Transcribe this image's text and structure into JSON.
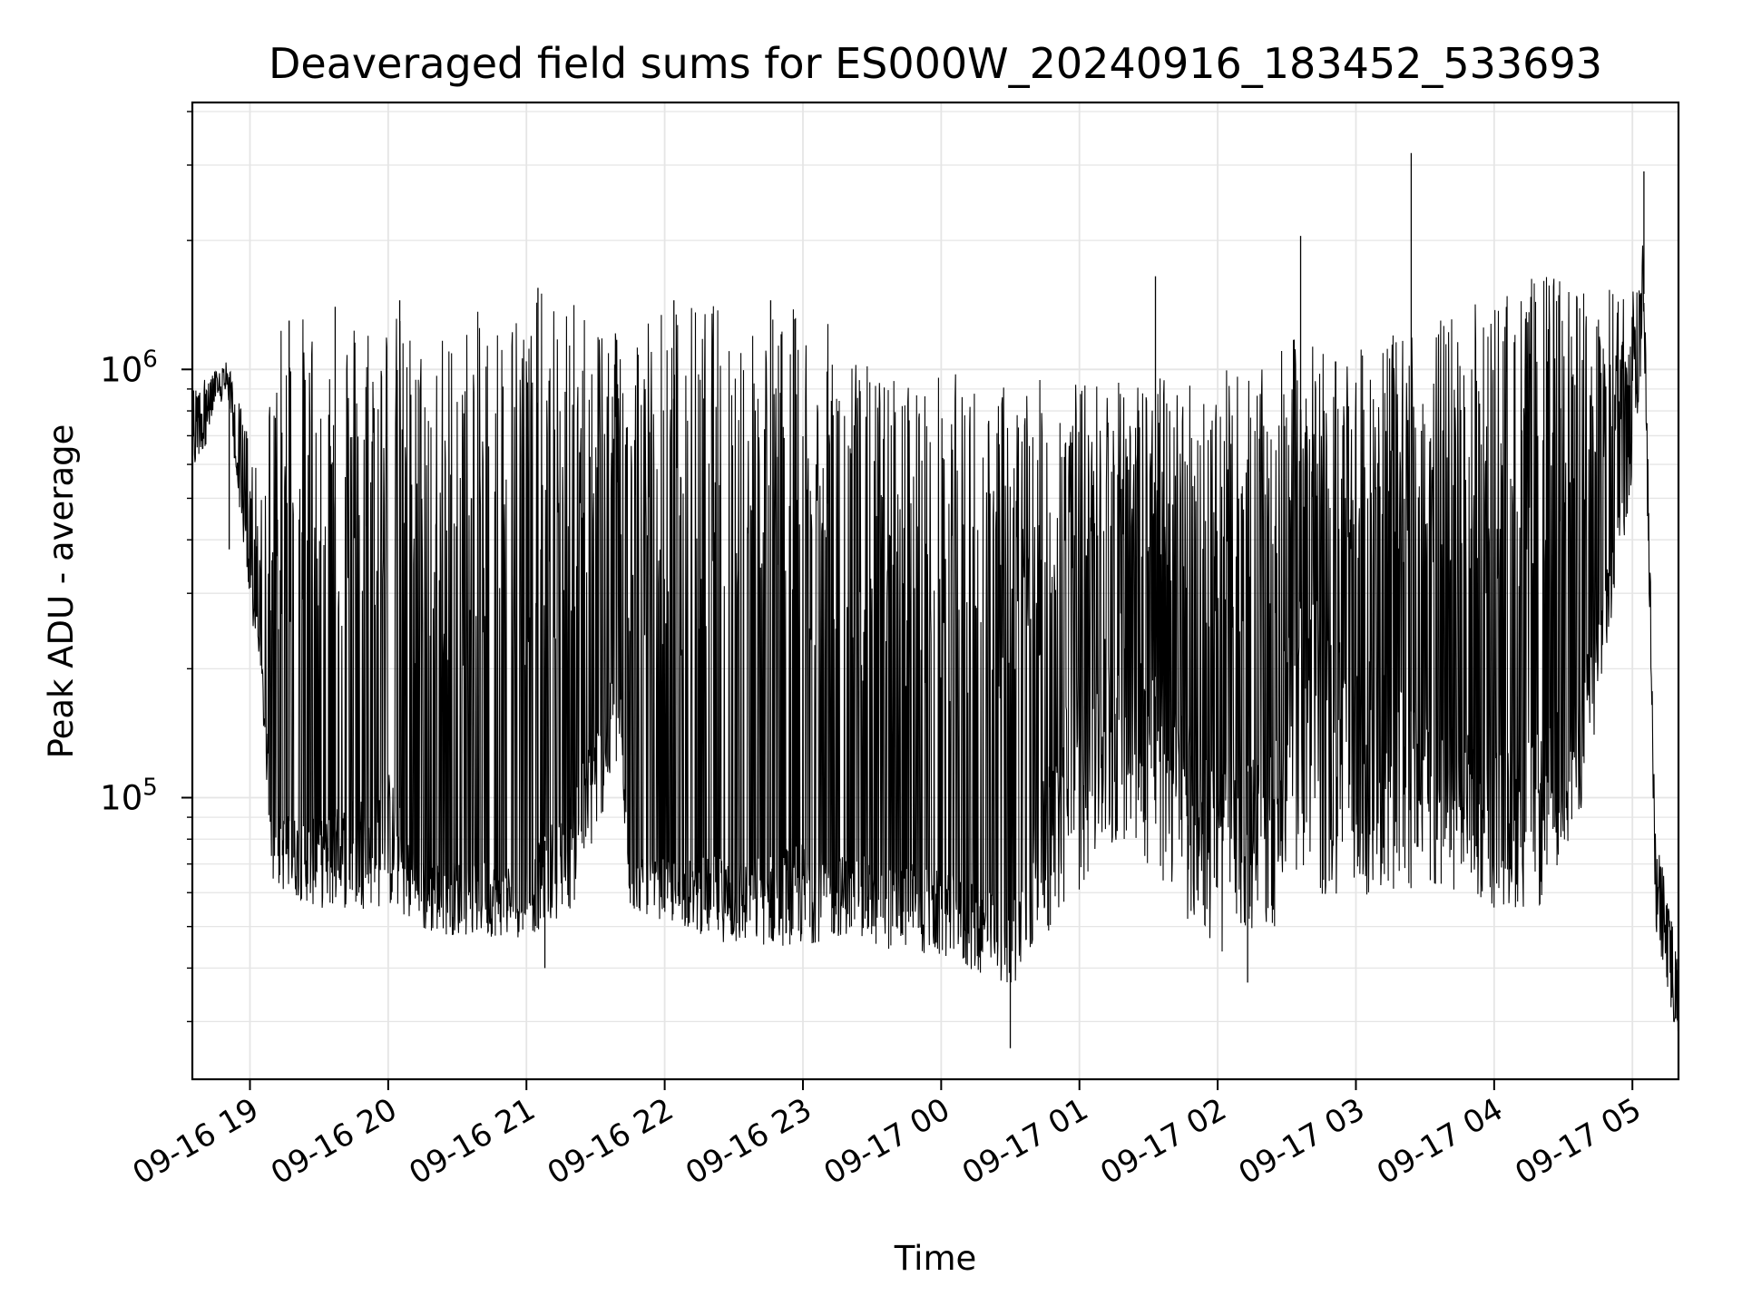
{
  "chart_data": {
    "type": "line",
    "title": "Deaveraged field sums for ES000W_20240916_183452_533693",
    "xlabel": "Time",
    "ylabel": "Peak ADU - average",
    "yscale": "log",
    "ylim": [
      22000,
      4200000
    ],
    "xlim": [
      "2024-09-16 18:35",
      "2024-09-17 05:20"
    ],
    "grid": true,
    "line_color": "#000000",
    "grid_color": "#e5e5e5",
    "x_ticks": [
      {
        "value": "2024-09-16 19:00",
        "label": "09-16 19"
      },
      {
        "value": "2024-09-16 20:00",
        "label": "09-16 20"
      },
      {
        "value": "2024-09-16 21:00",
        "label": "09-16 21"
      },
      {
        "value": "2024-09-16 22:00",
        "label": "09-16 22"
      },
      {
        "value": "2024-09-16 23:00",
        "label": "09-16 23"
      },
      {
        "value": "2024-09-17 00:00",
        "label": "09-17 00"
      },
      {
        "value": "2024-09-17 01:00",
        "label": "09-17 01"
      },
      {
        "value": "2024-09-17 02:00",
        "label": "09-17 02"
      },
      {
        "value": "2024-09-17 03:00",
        "label": "09-17 03"
      },
      {
        "value": "2024-09-17 04:00",
        "label": "09-17 04"
      },
      {
        "value": "2024-09-17 05:00",
        "label": "09-17 05"
      }
    ],
    "y_major_ticks": [
      {
        "value": 100000,
        "base": "10",
        "exp": "5"
      },
      {
        "value": 1000000,
        "base": "10",
        "exp": "6"
      }
    ],
    "envelope": [
      {
        "t": "2024-09-16 18:35",
        "low": 550000,
        "high": 900000,
        "base": 750000
      },
      {
        "t": "2024-09-16 18:50",
        "low": 900000,
        "high": 1050000,
        "base": 950000
      },
      {
        "t": "2024-09-16 19:00",
        "low": 280000,
        "high": 700000,
        "base": 350000
      },
      {
        "t": "2024-09-16 19:05",
        "low": 170000,
        "high": 500000,
        "base": 220000
      },
      {
        "t": "2024-09-16 19:10",
        "low": 62000,
        "high": 1300000,
        "base": 90000
      },
      {
        "t": "2024-09-16 19:30",
        "low": 55000,
        "high": 1400000,
        "base": 85000
      },
      {
        "t": "2024-09-16 20:00",
        "low": 55000,
        "high": 1450000,
        "base": 110000
      },
      {
        "t": "2024-09-16 20:15",
        "low": 48000,
        "high": 1200000,
        "base": 70000
      },
      {
        "t": "2024-09-16 21:00",
        "low": 47000,
        "high": 1550000,
        "base": 68000
      },
      {
        "t": "2024-09-16 21:20",
        "low": 55000,
        "high": 1450000,
        "base": 100000
      },
      {
        "t": "2024-09-16 21:40",
        "low": 120000,
        "high": 1400000,
        "base": 200000
      },
      {
        "t": "2024-09-16 21:45",
        "low": 55000,
        "high": 1450000,
        "base": 70000
      },
      {
        "t": "2024-09-16 22:30",
        "low": 45000,
        "high": 1450000,
        "base": 70000
      },
      {
        "t": "2024-09-16 23:00",
        "low": 45000,
        "high": 1400000,
        "base": 75000
      },
      {
        "t": "2024-09-16 23:20",
        "low": 48000,
        "high": 1200000,
        "base": 70000
      },
      {
        "t": "2024-09-16 23:30",
        "low": 45000,
        "high": 1000000,
        "base": 70000
      },
      {
        "t": "2024-09-17 00:00",
        "low": 42000,
        "high": 1000000,
        "base": 65000
      },
      {
        "t": "2024-09-17 00:30",
        "low": 36000,
        "high": 950000,
        "base": 55000
      },
      {
        "t": "2024-09-17 01:00",
        "low": 60000,
        "high": 950000,
        "base": 200000
      },
      {
        "t": "2024-09-17 01:20",
        "low": 80000,
        "high": 950000,
        "base": 250000
      },
      {
        "t": "2024-09-17 02:00",
        "low": 42000,
        "high": 1000000,
        "base": 110000
      },
      {
        "t": "2024-09-17 02:25",
        "low": 50000,
        "high": 1000000,
        "base": 120000
      },
      {
        "t": "2024-09-17 02:30",
        "low": 60000,
        "high": 1200000,
        "base": 300000
      },
      {
        "t": "2024-09-17 03:00",
        "low": 55000,
        "high": 1100000,
        "base": 200000
      },
      {
        "t": "2024-09-17 03:30",
        "low": 60000,
        "high": 1300000,
        "base": 150000
      },
      {
        "t": "2024-09-17 04:00",
        "low": 55000,
        "high": 1500000,
        "base": 120000
      },
      {
        "t": "2024-09-17 04:20",
        "low": 55000,
        "high": 1700000,
        "base": 130000
      },
      {
        "t": "2024-09-17 04:40",
        "low": 100000,
        "high": 1600000,
        "base": 200000
      },
      {
        "t": "2024-09-17 05:00",
        "low": 550000,
        "high": 1500000,
        "base": 700000
      },
      {
        "t": "2024-09-17 05:05",
        "low": 1200000,
        "high": 2100000,
        "base": 1500000
      },
      {
        "t": "2024-09-17 05:10",
        "low": 50000,
        "high": 80000,
        "base": 70000
      },
      {
        "t": "2024-09-17 05:20",
        "low": 26000,
        "high": 50000,
        "base": 30000
      }
    ],
    "spikes": [
      {
        "t": "2024-09-16 19:17",
        "value": 1300000
      },
      {
        "t": "2024-09-16 19:37",
        "value": 1400000
      },
      {
        "t": "2024-09-16 20:05",
        "value": 1450000
      },
      {
        "t": "2024-09-16 21:05",
        "value": 1550000
      },
      {
        "t": "2024-09-16 22:04",
        "value": 1450000
      },
      {
        "t": "2024-09-16 22:46",
        "value": 1450000
      },
      {
        "t": "2024-09-17 01:33",
        "value": 1650000
      },
      {
        "t": "2024-09-17 02:36",
        "value": 2050000
      },
      {
        "t": "2024-09-17 03:24",
        "value": 3200000
      },
      {
        "t": "2024-09-17 05:05",
        "value": 2900000
      },
      {
        "t": "2024-09-17 00:30",
        "value": 26000
      },
      {
        "t": "2024-09-16 21:08",
        "value": 40000
      },
      {
        "t": "2024-09-16 18:51",
        "value": 380000
      },
      {
        "t": "2024-09-17 02:13",
        "value": 37000
      }
    ]
  }
}
